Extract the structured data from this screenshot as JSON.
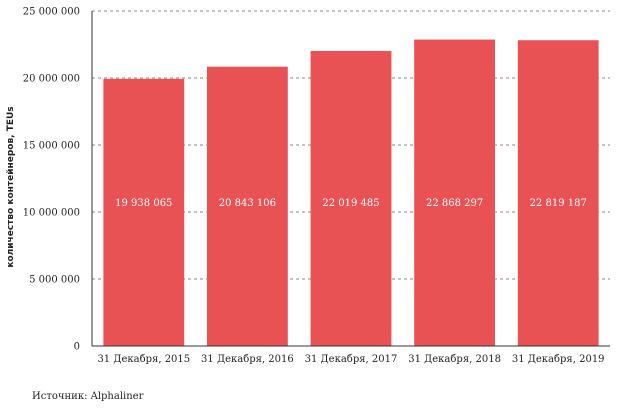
{
  "chart_data": {
    "type": "bar",
    "title": "",
    "xlabel": "",
    "ylabel": "количество контейнеров, TEUs",
    "categories": [
      "31 Декабря, 2015",
      "31 Декабря, 2016",
      "31 Декабря, 2017",
      "31 Декабря, 2018",
      "31 Декабря, 2019"
    ],
    "values": [
      19938065,
      20843106,
      22019485,
      22868297,
      22819187
    ],
    "value_labels": [
      "19 938 065",
      "20 843 106",
      "22 019 485",
      "22 868 297",
      "22 819 187"
    ],
    "ylim": [
      0,
      25000000
    ],
    "yticks": [
      0,
      5000000,
      10000000,
      15000000,
      20000000,
      25000000
    ],
    "ytick_labels": [
      "0",
      "5 000 000",
      "10 000 000",
      "15 000 000",
      "20 000 000",
      "25 000 000"
    ],
    "grid": true,
    "bar_color": "#e85255",
    "grid_color": "#888888",
    "axis_color": "#333333"
  },
  "source": {
    "text": "Источник: Alphaliner"
  }
}
